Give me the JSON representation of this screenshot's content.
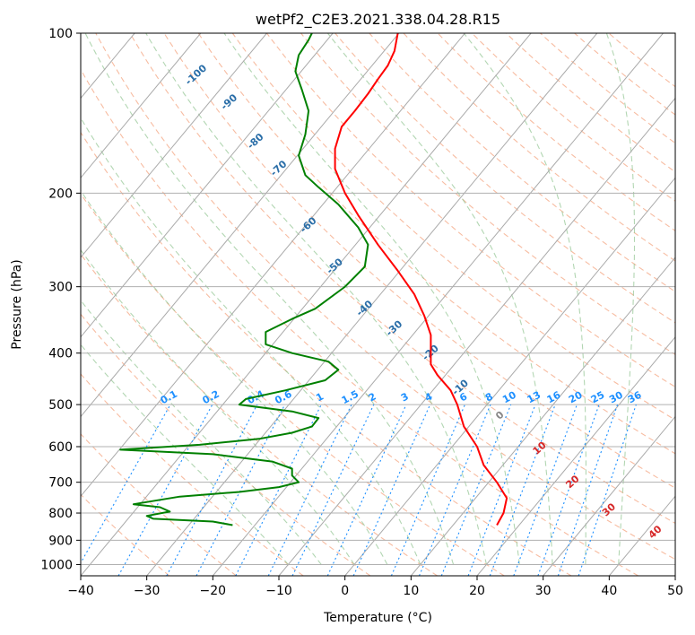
{
  "chart_data": {
    "type": "line",
    "subtype": "skew-T log-p diagram",
    "title": "wetPf2_C2E3.2021.338.04.28.R15",
    "xlabel": "Temperature (°C)",
    "ylabel": "Pressure (hPa)",
    "xlim": [
      -40,
      50
    ],
    "ylim": [
      1050,
      100
    ],
    "y_scale": "log",
    "x_ticks": [
      "−40",
      "−30",
      "−20",
      "−10",
      "0",
      "10",
      "20",
      "30",
      "40",
      "50"
    ],
    "x_tick_values": [
      -40,
      -30,
      -20,
      -10,
      0,
      10,
      20,
      30,
      40,
      50
    ],
    "y_ticks": [
      "100",
      "200",
      "300",
      "400",
      "500",
      "600",
      "700",
      "800",
      "900",
      "1000"
    ],
    "y_tick_values": [
      100,
      200,
      300,
      400,
      500,
      600,
      700,
      800,
      900,
      1000
    ],
    "grid": true,
    "background_lines": {
      "isotherm_color": "#aaaaaa",
      "dry_adiabat_color": "#f4a582",
      "moist_adiabat_color": "#92c592",
      "mixing_ratio_color": "#1e90ff",
      "isotherm_label_color": "#2a6ea8",
      "adiabat_label_color": "#d62728",
      "mixing_label_color": "#1e90ff",
      "isotherm_labels": [
        "-100",
        "-90",
        "-80",
        "-70",
        "-60",
        "-50",
        "-40",
        "-30",
        "-20",
        "-10",
        "0",
        "10",
        "20",
        "30",
        "40"
      ],
      "isotherm_label_values": [
        -100,
        -90,
        -80,
        -70,
        -60,
        -50,
        -40,
        -30,
        -20,
        -10,
        0,
        10,
        20,
        30,
        40
      ],
      "mixing_ratio_labels": [
        "0.1",
        "0.2",
        "0.4",
        "0.6",
        "1",
        "1.5",
        "2",
        "3",
        "4",
        "6",
        "8",
        "10",
        "13",
        "16",
        "20",
        "25",
        "30",
        "36"
      ],
      "mixing_ratio_values": [
        0.1,
        0.2,
        0.4,
        0.6,
        1,
        1.5,
        2,
        3,
        4,
        6,
        8,
        10,
        13,
        16,
        20,
        25,
        30,
        36
      ]
    },
    "series": [
      {
        "color": "#ff0000",
        "points": [
          [
            843,
            23.0
          ],
          [
            800,
            24.0
          ],
          [
            750,
            24.5
          ],
          [
            700,
            23.0
          ],
          [
            650,
            21.0
          ],
          [
            600,
            20.0
          ],
          [
            550,
            18.0
          ],
          [
            500,
            17.0
          ],
          [
            470,
            16.0
          ],
          [
            440,
            14.0
          ],
          [
            420,
            13.0
          ],
          [
            400,
            13.0
          ],
          [
            370,
            13.0
          ],
          [
            340,
            12.0
          ],
          [
            310,
            10.5
          ],
          [
            280,
            8.0
          ],
          [
            250,
            5.0
          ],
          [
            220,
            2.0
          ],
          [
            200,
            0.0
          ],
          [
            180,
            -1.5
          ],
          [
            165,
            -1.5
          ],
          [
            150,
            -0.5
          ],
          [
            140,
            1.5
          ],
          [
            130,
            3.5
          ],
          [
            122,
            5.0
          ],
          [
            115,
            6.5
          ],
          [
            108,
            7.5
          ],
          [
            100,
            8.0
          ]
        ]
      },
      {
        "color": "#008000",
        "points": [
          [
            843,
            -17.0
          ],
          [
            830,
            -20.0
          ],
          [
            820,
            -29.0
          ],
          [
            810,
            -30.0
          ],
          [
            795,
            -26.5
          ],
          [
            780,
            -28.0
          ],
          [
            770,
            -32.0
          ],
          [
            745,
            -25.0
          ],
          [
            730,
            -16.0
          ],
          [
            715,
            -10.0
          ],
          [
            700,
            -7.0
          ],
          [
            680,
            -8.0
          ],
          [
            660,
            -8.0
          ],
          [
            640,
            -11.0
          ],
          [
            620,
            -20.0
          ],
          [
            608,
            -34.0
          ],
          [
            595,
            -22.0
          ],
          [
            580,
            -13.0
          ],
          [
            565,
            -8.0
          ],
          [
            550,
            -5.0
          ],
          [
            530,
            -4.0
          ],
          [
            515,
            -8.0
          ],
          [
            500,
            -16.0
          ],
          [
            488,
            -15.0
          ],
          [
            470,
            -9.0
          ],
          [
            450,
            -3.0
          ],
          [
            430,
            -1.0
          ],
          [
            415,
            -2.5
          ],
          [
            400,
            -8.0
          ],
          [
            385,
            -12.0
          ],
          [
            365,
            -12.0
          ],
          [
            345,
            -8.0
          ],
          [
            330,
            -4.5
          ],
          [
            300,
            0.0
          ],
          [
            275,
            3.0
          ],
          [
            250,
            3.5
          ],
          [
            232,
            2.0
          ],
          [
            210,
            -1.0
          ],
          [
            195,
            -4.0
          ],
          [
            185,
            -6.0
          ],
          [
            170,
            -7.0
          ],
          [
            155,
            -6.0
          ],
          [
            140,
            -5.5
          ],
          [
            128,
            -6.5
          ],
          [
            118,
            -7.5
          ],
          [
            110,
            -7.0
          ],
          [
            103,
            -5.5
          ],
          [
            100,
            -5.0
          ]
        ]
      }
    ]
  }
}
